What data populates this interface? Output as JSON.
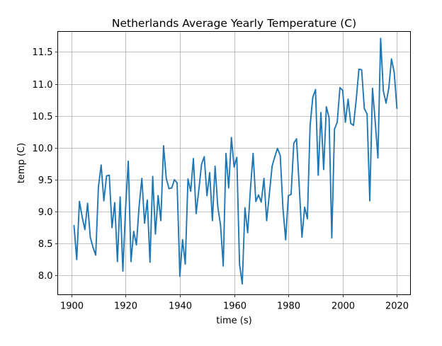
{
  "chart_data": {
    "type": "line",
    "title": "Netherlands Average Yearly Temperature (C)",
    "xlabel": "time (s)",
    "ylabel": "temp (C)",
    "xlim": [
      1895,
      2025
    ],
    "ylim": [
      7.7,
      11.82
    ],
    "xticks": [
      1900,
      1920,
      1940,
      1960,
      1980,
      2000,
      2020
    ],
    "yticks": [
      8.0,
      8.5,
      9.0,
      9.5,
      10.0,
      10.5,
      11.0,
      11.5
    ],
    "ytick_labels": [
      "8.0",
      "8.5",
      "9.0",
      "9.5",
      "10.0",
      "10.5",
      "11.0",
      "11.5"
    ],
    "grid": true,
    "series": [
      {
        "color": "#1f77b4",
        "x": [
          1901,
          1902,
          1903,
          1904,
          1905,
          1906,
          1907,
          1908,
          1909,
          1910,
          1911,
          1912,
          1913,
          1914,
          1915,
          1916,
          1917,
          1918,
          1919,
          1920,
          1921,
          1922,
          1923,
          1924,
          1925,
          1926,
          1927,
          1928,
          1929,
          1930,
          1931,
          1932,
          1933,
          1934,
          1935,
          1936,
          1937,
          1938,
          1939,
          1940,
          1941,
          1942,
          1943,
          1944,
          1945,
          1946,
          1947,
          1948,
          1949,
          1950,
          1951,
          1952,
          1953,
          1954,
          1955,
          1956,
          1957,
          1958,
          1959,
          1960,
          1961,
          1962,
          1963,
          1964,
          1965,
          1966,
          1967,
          1968,
          1969,
          1970,
          1971,
          1972,
          1973,
          1974,
          1975,
          1976,
          1977,
          1978,
          1979,
          1980,
          1981,
          1982,
          1983,
          1984,
          1985,
          1986,
          1987,
          1988,
          1989,
          1990,
          1991,
          1992,
          1993,
          1994,
          1995,
          1996,
          1997,
          1998,
          1999,
          2000,
          2001,
          2002,
          2003,
          2004,
          2005,
          2006,
          2007,
          2008,
          2009,
          2010,
          2011,
          2012,
          2013,
          2014,
          2015,
          2016,
          2017,
          2018,
          2019,
          2020
        ],
        "y": [
          8.78,
          8.25,
          9.16,
          8.92,
          8.72,
          9.13,
          8.6,
          8.44,
          8.32,
          9.39,
          9.73,
          9.17,
          9.56,
          9.57,
          8.75,
          9.14,
          8.22,
          9.23,
          8.07,
          9.05,
          9.79,
          8.22,
          8.69,
          8.48,
          9.09,
          9.52,
          8.82,
          9.18,
          8.21,
          9.55,
          8.65,
          9.25,
          8.86,
          10.03,
          9.52,
          9.36,
          9.37,
          9.5,
          9.45,
          7.99,
          8.56,
          8.18,
          9.51,
          9.32,
          9.83,
          8.97,
          9.34,
          9.74,
          9.86,
          9.25,
          9.61,
          8.86,
          9.71,
          9.07,
          8.79,
          8.15,
          9.91,
          9.37,
          10.16,
          9.7,
          9.85,
          8.18,
          7.87,
          9.06,
          8.67,
          9.34,
          9.91,
          9.16,
          9.26,
          9.15,
          9.52,
          8.86,
          9.28,
          9.71,
          9.86,
          9.99,
          9.88,
          9.05,
          8.56,
          9.25,
          9.27,
          10.07,
          10.14,
          9.4,
          8.6,
          9.07,
          8.89,
          10.34,
          10.79,
          10.91,
          9.57,
          10.55,
          9.66,
          10.64,
          10.47,
          8.59,
          10.29,
          10.4,
          10.94,
          10.9,
          10.4,
          10.76,
          10.38,
          10.35,
          10.75,
          11.23,
          11.22,
          10.61,
          10.53,
          9.17,
          10.93,
          10.41,
          9.84,
          11.71,
          10.89,
          10.7,
          10.93,
          11.39,
          11.18,
          10.62
        ]
      }
    ]
  }
}
